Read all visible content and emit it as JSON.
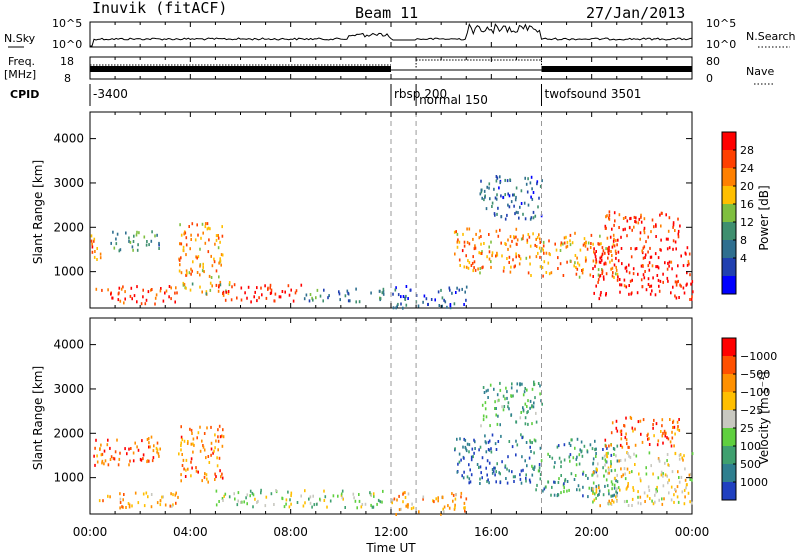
{
  "header": {
    "station": "Inuvik (fitACF)",
    "beam": "Beam 11",
    "date": "27/Jan/2013"
  },
  "nsky_panel": {
    "left_label": "N.Sky",
    "left_ticks": [
      "10^5",
      "10^0"
    ],
    "right_label": "N.Search",
    "right_ticks": [
      "10^5",
      "10^0"
    ]
  },
  "freq_panel": {
    "left_label_1": "Freq.",
    "left_label_2": "[MHz]",
    "left_ticks": [
      "18",
      "8"
    ],
    "right_label": "Nave",
    "right_ticks": [
      "80",
      "0"
    ]
  },
  "cpid_panel": {
    "label": "CPID",
    "segments": [
      {
        "start_hour": 0.0,
        "text": "-3400"
      },
      {
        "start_hour": 12.0,
        "text": "rbsp 200"
      },
      {
        "start_hour": 13.0,
        "text": "normal 150"
      },
      {
        "start_hour": 18.0,
        "text": "twofsound 3501"
      }
    ]
  },
  "x_axis": {
    "label": "Time UT",
    "ticks": [
      "00:00",
      "04:00",
      "08:00",
      "12:00",
      "16:00",
      "20:00",
      "00:00"
    ],
    "range_hours": [
      0,
      24
    ]
  },
  "chart_data": [
    {
      "type": "heatmap",
      "panel": "power",
      "ylabel": "Slant Range [km]",
      "yticks": [
        1000,
        2000,
        3000,
        4000
      ],
      "ylim": [
        180,
        4600
      ],
      "colorbar": {
        "label": "Power [dB]",
        "ticks": [
          "4",
          "8",
          "12",
          "16",
          "20",
          "24",
          "28"
        ],
        "colors": [
          "#0000ff",
          "#2040b0",
          "#2f6f8f",
          "#3f8f6f",
          "#7fbf3f",
          "#ffbf00",
          "#ff8000",
          "#ff4000",
          "#ff0000"
        ]
      },
      "scatter_regions": [
        {
          "t": [
            0.0,
            0.6
          ],
          "r": [
            1300,
            1900
          ],
          "v": 0.75
        },
        {
          "t": [
            0.8,
            2.8
          ],
          "r": [
            1500,
            1950
          ],
          "v": 0.35
        },
        {
          "t": [
            0.2,
            3.5
          ],
          "r": [
            300,
            700
          ],
          "v": 0.85
        },
        {
          "t": [
            3.5,
            5.3
          ],
          "r": [
            900,
            2200
          ],
          "v": 0.7
        },
        {
          "t": [
            3.6,
            5.6
          ],
          "r": [
            500,
            800
          ],
          "v": 0.55
        },
        {
          "t": [
            5.0,
            8.5
          ],
          "r": [
            350,
            750
          ],
          "v": 0.9
        },
        {
          "t": [
            8.5,
            11.8
          ],
          "r": [
            350,
            650
          ],
          "v": 0.35
        },
        {
          "t": [
            12.0,
            15.0
          ],
          "r": [
            200,
            700
          ],
          "v": 0.2
        },
        {
          "t": [
            14.5,
            17.5
          ],
          "r": [
            1000,
            2000
          ],
          "v": 0.72
        },
        {
          "t": [
            15.5,
            18.0
          ],
          "r": [
            2200,
            3200
          ],
          "v": 0.25
        },
        {
          "t": [
            17.5,
            21.0
          ],
          "r": [
            900,
            1900
          ],
          "v": 0.7
        },
        {
          "t": [
            20.0,
            24.0
          ],
          "r": [
            400,
            1600
          ],
          "v": 0.92
        },
        {
          "t": [
            20.5,
            23.5
          ],
          "r": [
            1700,
            2400
          ],
          "v": 0.88
        }
      ]
    },
    {
      "type": "heatmap",
      "panel": "velocity",
      "ylabel": "Slant Range [km]",
      "yticks": [
        1000,
        2000,
        3000,
        4000
      ],
      "ylim": [
        180,
        4600
      ],
      "colorbar": {
        "label": "Velocity [m s⁻¹]",
        "ticks": [
          "1000",
          "500",
          "100",
          "25",
          "−25",
          "−100",
          "−500",
          "−1000"
        ],
        "colors": [
          "#2040c0",
          "#2f7f8f",
          "#3fa06f",
          "#5fcf3f",
          "#c8c8c0",
          "#ffbf00",
          "#ff9000",
          "#ff5000",
          "#ff0000"
        ]
      },
      "scatter_regions": [
        {
          "t": [
            0.0,
            2.8
          ],
          "r": [
            1300,
            1950
          ],
          "v": 0.8
        },
        {
          "t": [
            0.2,
            3.5
          ],
          "r": [
            350,
            700
          ],
          "v": 0.7
        },
        {
          "t": [
            3.5,
            5.3
          ],
          "r": [
            900,
            2200
          ],
          "v": 0.75
        },
        {
          "t": [
            5.0,
            11.8
          ],
          "r": [
            350,
            750
          ],
          "v": 0.45
        },
        {
          "t": [
            12.0,
            15.0
          ],
          "r": [
            200,
            700
          ],
          "v": 0.7
        },
        {
          "t": [
            14.5,
            17.5
          ],
          "r": [
            900,
            2000
          ],
          "v": 0.12
        },
        {
          "t": [
            15.5,
            18.0
          ],
          "r": [
            2200,
            3200
          ],
          "v": 0.3
        },
        {
          "t": [
            17.5,
            21.0
          ],
          "r": [
            600,
            1900
          ],
          "v": 0.25
        },
        {
          "t": [
            20.0,
            24.0
          ],
          "r": [
            400,
            1600
          ],
          "v": 0.55
        },
        {
          "t": [
            20.5,
            23.5
          ],
          "r": [
            1700,
            2400
          ],
          "v": 0.8
        }
      ]
    }
  ]
}
